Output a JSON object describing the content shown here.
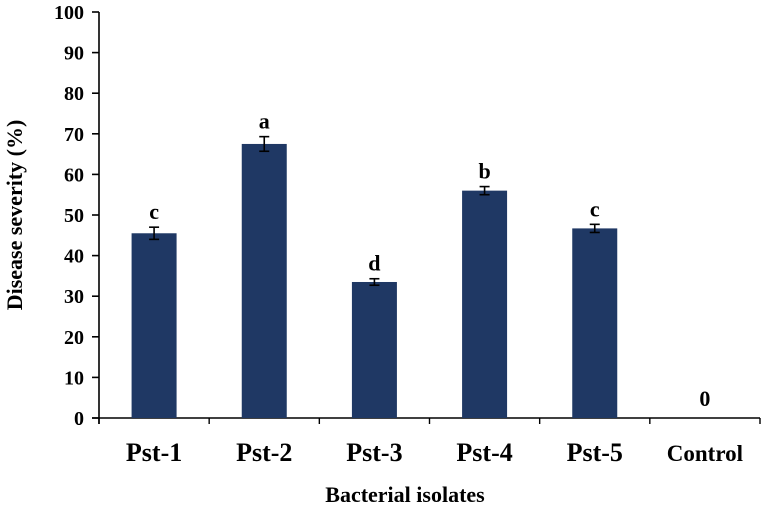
{
  "chart_data": {
    "type": "bar",
    "title": "",
    "xlabel": "Bacterial isolates",
    "ylabel": "Disease severity (%)",
    "ylim": [
      0,
      100
    ],
    "yticks": [
      0,
      10,
      20,
      30,
      40,
      50,
      60,
      70,
      80,
      90,
      100
    ],
    "categories": [
      "Pst-1",
      "Pst-2",
      "Pst-3",
      "Pst-4",
      "Pst-5",
      "Control"
    ],
    "values": [
      45.5,
      67.5,
      33.5,
      56.0,
      46.7,
      0
    ],
    "errors": [
      1.5,
      1.8,
      0.8,
      1.0,
      1.0,
      0
    ],
    "significance_letters": [
      "c",
      "a",
      "d",
      "b",
      "c",
      "0"
    ],
    "bar_color": "#1f3864",
    "grid": false,
    "legend": null
  }
}
